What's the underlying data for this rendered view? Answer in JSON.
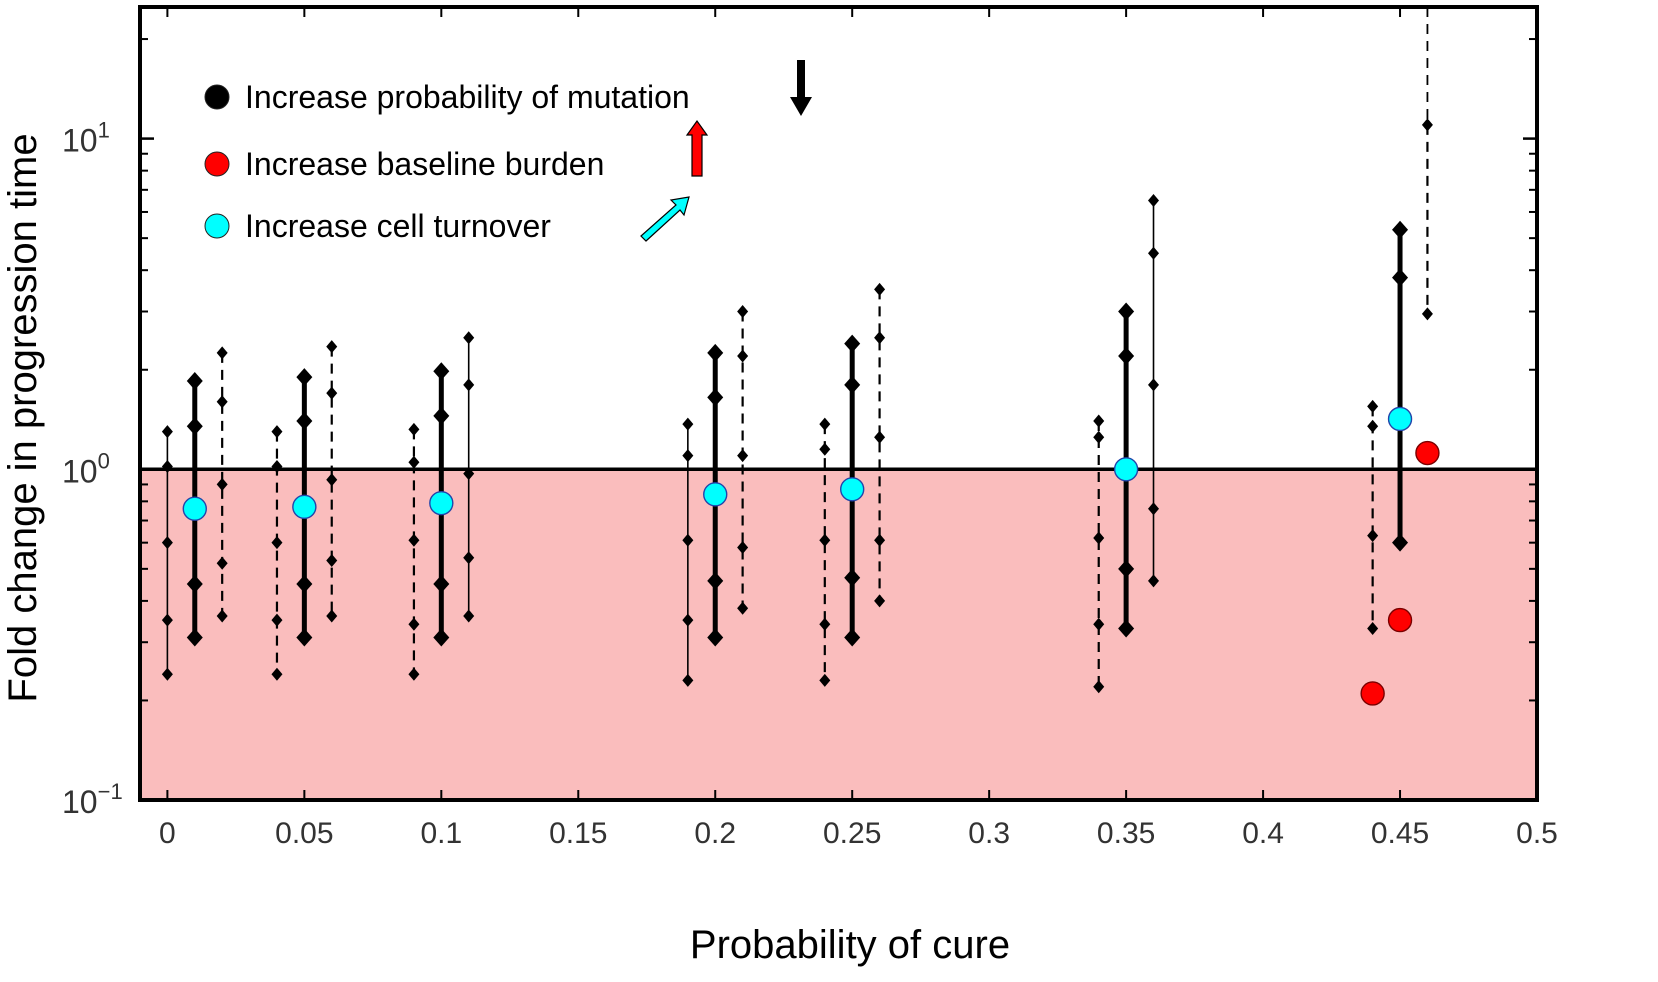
{
  "chart_data": {
    "type": "scatter",
    "title": "",
    "xlabel": "Probability of cure",
    "ylabel": "Fold change in progression time",
    "x_range": [
      -0.01,
      0.5
    ],
    "y_range": [
      0.1,
      25
    ],
    "y_scale": "log",
    "x_ticks": [
      0,
      0.05,
      0.1,
      0.15,
      0.2,
      0.25,
      0.3,
      0.35,
      0.4,
      0.45,
      0.5
    ],
    "x_tick_labels": [
      "0",
      "0.05",
      "0.1",
      "0.15",
      "0.2",
      "0.25",
      "0.3",
      "0.35",
      "0.4",
      "0.45",
      "0.5"
    ],
    "y_ticks": [
      {
        "value": 10,
        "base": "10",
        "exp": "1"
      },
      {
        "value": 1,
        "base": "10",
        "exp": "0"
      },
      {
        "value": 0.1,
        "base": "10",
        "exp": "−1"
      }
    ],
    "reference_line": 1,
    "shade_below_reference": true,
    "grid": false,
    "legend_placement": "top-left",
    "legend": [
      {
        "label": "Increase probability of  mutation",
        "color": "#000000",
        "arrow": "down",
        "arrow_color": "#000000"
      },
      {
        "label": "Increase baseline burden",
        "color": "#ff0000",
        "arrow": "up",
        "arrow_color": "#ff0000"
      },
      {
        "label": "Increase  cell  turnover",
        "color": "#00ffff",
        "arrow": "up-right",
        "arrow_color": "#00ffff"
      }
    ],
    "groups": [
      {
        "x": 0.0,
        "style": "thin",
        "values": [
          1.3,
          1.02,
          0.6,
          0.35,
          0.24
        ]
      },
      {
        "x": 0.01,
        "style": "thick",
        "values": [
          1.85,
          1.35,
          0.45,
          0.31
        ]
      },
      {
        "x": 0.02,
        "style": "dashed",
        "values": [
          2.25,
          1.6,
          0.9,
          0.52,
          0.36
        ]
      },
      {
        "x": 0.04,
        "style": "dashed",
        "values": [
          1.3,
          1.02,
          0.6,
          0.35,
          0.24
        ]
      },
      {
        "x": 0.05,
        "style": "thick",
        "values": [
          1.9,
          1.4,
          0.45,
          0.31
        ]
      },
      {
        "x": 0.06,
        "style": "dashed",
        "values": [
          2.35,
          1.7,
          0.93,
          0.53,
          0.36
        ]
      },
      {
        "x": 0.09,
        "style": "dashed",
        "values": [
          1.32,
          1.05,
          0.61,
          0.34,
          0.24
        ]
      },
      {
        "x": 0.1,
        "style": "thick",
        "values": [
          1.98,
          1.45,
          0.45,
          0.31
        ]
      },
      {
        "x": 0.11,
        "style": "thin",
        "values": [
          2.5,
          1.8,
          0.97,
          0.54,
          0.36
        ]
      },
      {
        "x": 0.19,
        "style": "thin",
        "values": [
          1.37,
          1.1,
          0.61,
          0.35,
          0.23
        ]
      },
      {
        "x": 0.2,
        "style": "thick",
        "values": [
          2.25,
          1.65,
          0.46,
          0.31
        ]
      },
      {
        "x": 0.21,
        "style": "dashed",
        "values": [
          3.0,
          2.2,
          1.1,
          0.58,
          0.38
        ]
      },
      {
        "x": 0.24,
        "style": "dashed",
        "values": [
          1.37,
          1.15,
          0.61,
          0.34,
          0.23
        ]
      },
      {
        "x": 0.25,
        "style": "thick",
        "values": [
          2.4,
          1.8,
          0.47,
          0.31
        ]
      },
      {
        "x": 0.26,
        "style": "dashed",
        "values": [
          3.5,
          2.5,
          1.25,
          0.61,
          0.4
        ]
      },
      {
        "x": 0.34,
        "style": "dashed",
        "values": [
          1.4,
          1.25,
          0.62,
          0.34,
          0.22
        ]
      },
      {
        "x": 0.35,
        "style": "thick",
        "values": [
          3.0,
          2.2,
          0.5,
          0.33
        ]
      },
      {
        "x": 0.36,
        "style": "thin",
        "values": [
          6.5,
          4.5,
          1.8,
          0.76,
          0.46
        ]
      },
      {
        "x": 0.44,
        "style": "dashed",
        "values": [
          1.55,
          1.35,
          0.63,
          0.33
        ]
      },
      {
        "x": 0.45,
        "style": "thick",
        "values": [
          5.3,
          3.8,
          0.6
        ]
      },
      {
        "x": 0.46,
        "style": "dashed",
        "values": [
          11.0,
          2.95
        ]
      }
    ],
    "highlights": [
      {
        "x": 0.01,
        "y": 0.76,
        "color": "#00ffff"
      },
      {
        "x": 0.05,
        "y": 0.77,
        "color": "#00ffff"
      },
      {
        "x": 0.1,
        "y": 0.79,
        "color": "#00ffff"
      },
      {
        "x": 0.2,
        "y": 0.84,
        "color": "#00ffff"
      },
      {
        "x": 0.25,
        "y": 0.87,
        "color": "#00ffff"
      },
      {
        "x": 0.35,
        "y": 1.0,
        "color": "#00ffff"
      },
      {
        "x": 0.45,
        "y": 1.42,
        "color": "#00ffff"
      },
      {
        "x": 0.44,
        "y": 0.21,
        "color": "#ff0000"
      },
      {
        "x": 0.45,
        "y": 0.35,
        "color": "#ff0000"
      },
      {
        "x": 0.46,
        "y": 1.12,
        "color": "#ff0000"
      }
    ],
    "tail_segments": [
      {
        "x": 0.46,
        "from": 11.0,
        "to": 25,
        "style": "dashed"
      }
    ],
    "colors": {
      "shade": "#fabdbd",
      "axis": "#000000",
      "marker": "#000000"
    }
  }
}
